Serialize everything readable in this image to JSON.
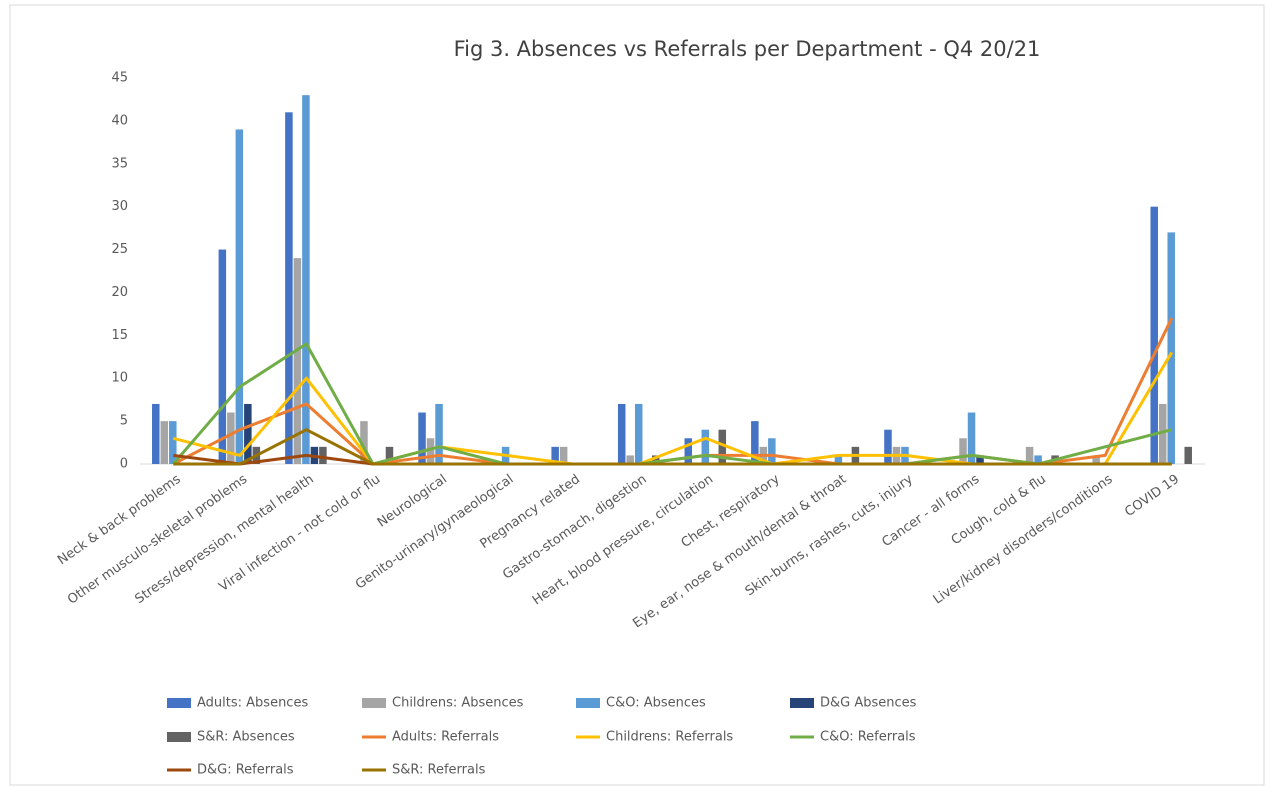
{
  "chart_data": {
    "type": "bar-line",
    "title": "Fig 3. Absences vs Referrals per Department - Q4 20/21",
    "categories": [
      "Neck & back problems",
      "Other musculo-skeletal problems",
      "Stress/depression, mental health",
      "Viral infection - not cold or flu",
      "Neurological",
      "Genito-urinary/gynaeological",
      "Pregnancy related",
      "Gastro-stomach, digestion",
      "Heart, blood pressure, circulation",
      "Chest, respiratory",
      "Eye, ear, nose & mouth/dental & throat",
      "Skin-burns, rashes, cuts, injury",
      "Cancer - all forms",
      "Cough, cold & flu",
      "Liver/kidney disorders/conditions",
      "COVID 19"
    ],
    "series": [
      {
        "name": "Adults: Absences",
        "kind": "bar",
        "color": "#4472c4",
        "values": [
          7,
          25,
          41,
          0,
          6,
          0,
          2,
          7,
          3,
          5,
          0,
          4,
          0,
          0,
          0,
          30
        ]
      },
      {
        "name": "Childrens: Absences",
        "kind": "bar",
        "color": "#a5a5a5",
        "values": [
          5,
          6,
          24,
          5,
          3,
          0,
          2,
          1,
          0,
          2,
          0,
          2,
          3,
          2,
          1,
          7
        ]
      },
      {
        "name": "C&O: Absences",
        "kind": "bar",
        "color": "#5b9bd5",
        "values": [
          5,
          39,
          43,
          0,
          7,
          2,
          0,
          7,
          4,
          3,
          1,
          2,
          6,
          1,
          0,
          27
        ]
      },
      {
        "name": "D&G Absences",
        "kind": "bar",
        "color": "#264478",
        "values": [
          0,
          7,
          2,
          0,
          0,
          0,
          0,
          0,
          0,
          0,
          0,
          0,
          1,
          0,
          0,
          0
        ]
      },
      {
        "name": "S&R: Absences",
        "kind": "bar",
        "color": "#636363",
        "values": [
          0,
          2,
          2,
          2,
          0,
          0,
          0,
          1,
          4,
          0,
          2,
          0,
          0,
          1,
          0,
          2
        ]
      },
      {
        "name": "Adults: Referrals",
        "kind": "line",
        "color": "#ed7d31",
        "values": [
          0,
          4,
          7,
          0,
          1,
          0,
          0,
          0,
          1,
          1,
          0,
          0,
          1,
          0,
          1,
          17
        ]
      },
      {
        "name": "Childrens: Referrals",
        "kind": "line",
        "color": "#ffc000",
        "values": [
          3,
          1,
          10,
          0,
          2,
          1,
          0,
          0,
          3,
          0,
          1,
          1,
          0,
          0,
          0,
          13
        ]
      },
      {
        "name": "C&O: Referrals",
        "kind": "line",
        "color": "#70ad47",
        "values": [
          0,
          9,
          14,
          0,
          2,
          0,
          0,
          0,
          1,
          0,
          0,
          0,
          1,
          0,
          2,
          4
        ]
      },
      {
        "name": "D&G: Referrals",
        "kind": "line",
        "color": "#9e480e",
        "values": [
          1,
          0,
          1,
          0,
          0,
          0,
          0,
          0,
          0,
          0,
          0,
          0,
          0,
          0,
          0,
          0
        ]
      },
      {
        "name": "S&R: Referrals",
        "kind": "line",
        "color": "#997300",
        "values": [
          0,
          0,
          4,
          0,
          0,
          0,
          0,
          0,
          0,
          0,
          0,
          0,
          0,
          0,
          0,
          0
        ]
      }
    ],
    "ylim": [
      0,
      45
    ],
    "yticks": [
      0,
      5,
      10,
      15,
      20,
      25,
      30,
      35,
      40,
      45
    ],
    "grid": false
  }
}
